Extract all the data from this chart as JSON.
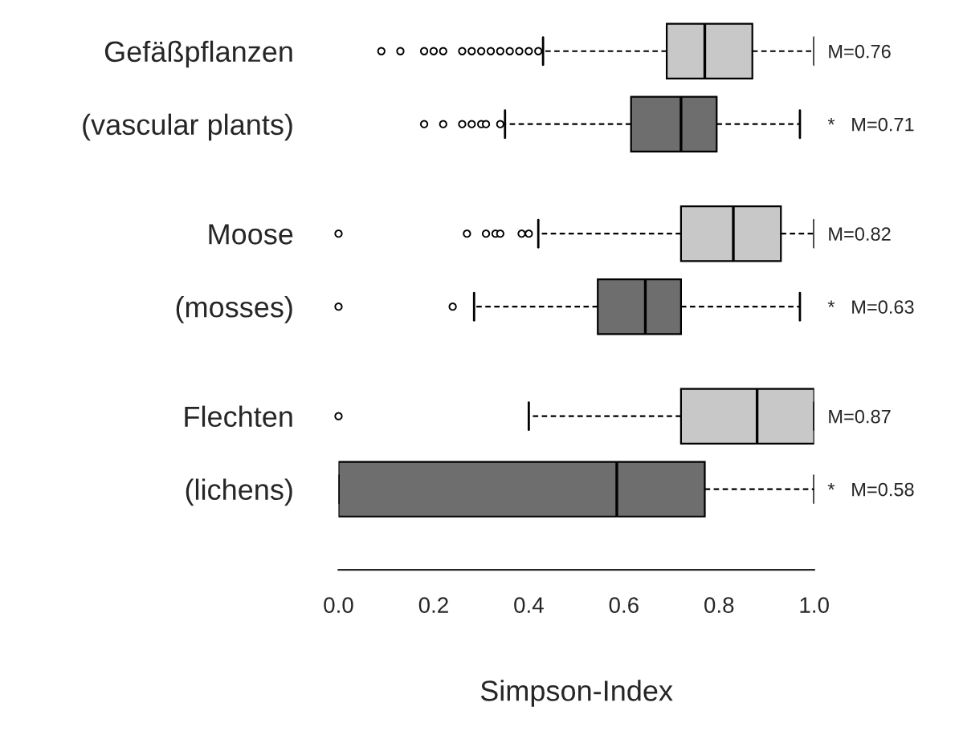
{
  "chart_data": {
    "type": "box",
    "orientation": "horizontal",
    "xlabel": "Simpson-Index",
    "categories": [
      "Gefäßpflanzen",
      "(vascular plants)",
      "Moose",
      "(mosses)",
      "Flechten",
      "(lichens)"
    ],
    "colors": [
      "#c8c8c8",
      "#6e6e6e",
      "#c8c8c8",
      "#6e6e6e",
      "#c8c8c8",
      "#6e6e6e"
    ],
    "boxes": [
      {
        "low": 0.43,
        "q1": 0.69,
        "median": 0.77,
        "q3": 0.87,
        "high": 1.0,
        "outliers": [
          0.09,
          0.13,
          0.18,
          0.2,
          0.22,
          0.26,
          0.28,
          0.3,
          0.32,
          0.34,
          0.36,
          0.38,
          0.4,
          0.42
        ]
      },
      {
        "low": 0.35,
        "q1": 0.615,
        "median": 0.72,
        "q3": 0.795,
        "high": 0.97,
        "outliers": [
          0.18,
          0.22,
          0.26,
          0.28,
          0.3,
          0.31,
          0.34
        ]
      },
      {
        "low": 0.42,
        "q1": 0.72,
        "median": 0.83,
        "q3": 0.93,
        "high": 1.0,
        "outliers": [
          0.0,
          0.27,
          0.31,
          0.33,
          0.34,
          0.385,
          0.4
        ]
      },
      {
        "low": 0.285,
        "q1": 0.545,
        "median": 0.645,
        "q3": 0.72,
        "high": 0.97,
        "outliers": [
          0.0,
          0.24
        ]
      },
      {
        "low": 0.4,
        "q1": 0.72,
        "median": 0.88,
        "q3": 1.0,
        "high": 1.0,
        "outliers": [
          0.0
        ]
      },
      {
        "low": 0.0,
        "q1": 0.0,
        "median": 0.585,
        "q3": 0.77,
        "high": 1.0
      }
    ],
    "xlim": [
      0,
      1
    ],
    "xticks": [
      {
        "value": 0,
        "label": "0.0"
      },
      {
        "value": 0.2,
        "label": "0.2"
      },
      {
        "value": 0.4,
        "label": "0.4"
      },
      {
        "value": 0.6,
        "label": "0.6"
      },
      {
        "value": 0.8,
        "label": "0.8"
      },
      {
        "value": 1,
        "label": "1.0"
      }
    ],
    "y2_categories": [
      "M=0.76",
      "*   M=0.71",
      "M=0.82",
      "*   M=0.63",
      "M=0.87",
      "*   M=0.58"
    ],
    "grid": false,
    "legend": false
  }
}
